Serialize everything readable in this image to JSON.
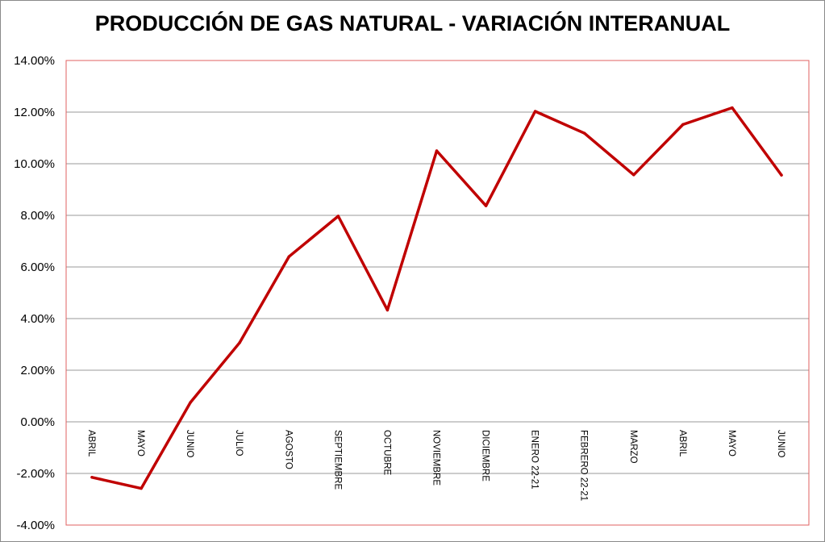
{
  "chart_data": {
    "type": "line",
    "title": "PRODUCCIÓN DE GAS NATURAL - VARIACIÓN INTERANUAL",
    "xlabel": "",
    "ylabel": "",
    "categories": [
      "ABRIL",
      "MAYO",
      "JUNIO",
      "JULIO",
      "AGOSTO",
      "SEPTIEMBRE",
      "OCTUBRE",
      "NOVIEMBRE",
      "DICIEMBRE",
      "ENERO 22-21",
      "FEBRERO 22-21",
      "MARZO",
      "ABRIL",
      "MAYO",
      "JUNIO"
    ],
    "series": [
      {
        "values": [
          -2.15,
          -2.58,
          0.75,
          3.07,
          6.4,
          7.97,
          4.33,
          10.5,
          8.37,
          12.03,
          11.18,
          9.57,
          11.52,
          12.17,
          9.56
        ]
      }
    ],
    "ylim": [
      -4,
      14
    ],
    "yticks": [
      "14.00%",
      "12.00%",
      "10.00%",
      "8.00%",
      "6.00%",
      "4.00%",
      "2.00%",
      "0.00%",
      "-2.00%",
      "-4.00%"
    ],
    "ytick_values": [
      14,
      12,
      10,
      8,
      6,
      4,
      2,
      0,
      -2,
      -4
    ],
    "grid": true,
    "colors": {
      "line": "#c00000",
      "plot_border": "#e06060",
      "grid": "#9a9a9a"
    }
  }
}
